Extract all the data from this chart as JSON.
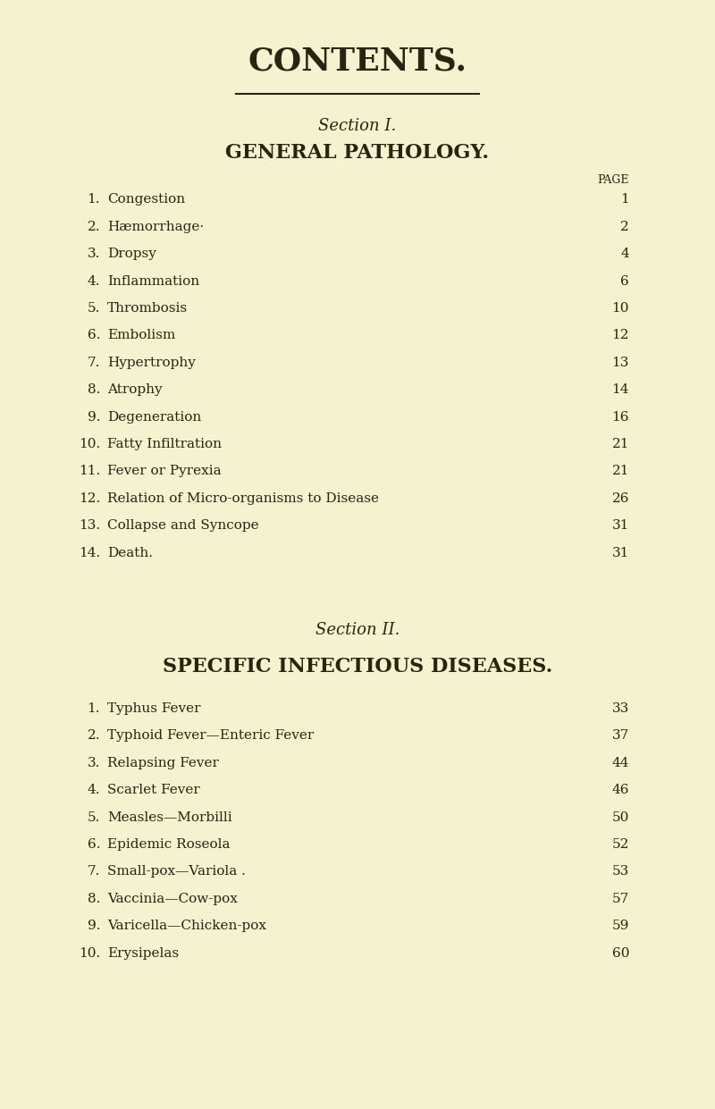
{
  "bg_color": "#f5f2d0",
  "text_color": "#2a2310",
  "title": "CONTENTS.",
  "section1_header": "Section I.",
  "section1_subheader": "GENERAL PATHOLOGY.",
  "section2_header": "Section II.",
  "section2_subheader": "SPECIFIC INFECTIOUS DISEASES.",
  "page_label": "PAGE",
  "section1_items": [
    [
      "1.",
      "Congestion",
      "1"
    ],
    [
      "2.",
      "Hæmorrhage·",
      "2"
    ],
    [
      "3.",
      "Dropsy",
      "4"
    ],
    [
      "4.",
      "Inflammation",
      "6"
    ],
    [
      "5.",
      "Thrombosis",
      "10"
    ],
    [
      "6.",
      "Embolism",
      "12"
    ],
    [
      "7.",
      "Hypertrophy",
      "13"
    ],
    [
      "8.",
      "Atrophy",
      "14"
    ],
    [
      "9.",
      "Degeneration",
      "16"
    ],
    [
      "10.",
      "Fatty Infiltration",
      "21"
    ],
    [
      "11.",
      "Fever or Pyrexia",
      "21"
    ],
    [
      "12.",
      "Relation of Micro-organisms to Disease",
      "26"
    ],
    [
      "13.",
      "Collapse and Syncope",
      "31"
    ],
    [
      "14.",
      "Death.",
      "31"
    ]
  ],
  "section2_items": [
    [
      "1.",
      "Typhus Fever",
      "33"
    ],
    [
      "2.",
      "Typhoid Fever—Enteric Fever",
      "37"
    ],
    [
      "3.",
      "Relapsing Fever",
      "44"
    ],
    [
      "4.",
      "Scarlet Fever",
      "46"
    ],
    [
      "5.",
      "Measles—Morbilli",
      "50"
    ],
    [
      "6.",
      "Epidemic Roseola",
      "52"
    ],
    [
      "7.",
      "Small-pox—Variola .",
      "53"
    ],
    [
      "8.",
      "Vaccinia—Cow-pox",
      "57"
    ],
    [
      "9.",
      "Varicella—Chicken-pox",
      "59"
    ],
    [
      "10.",
      "Erysipelas",
      "60"
    ]
  ]
}
